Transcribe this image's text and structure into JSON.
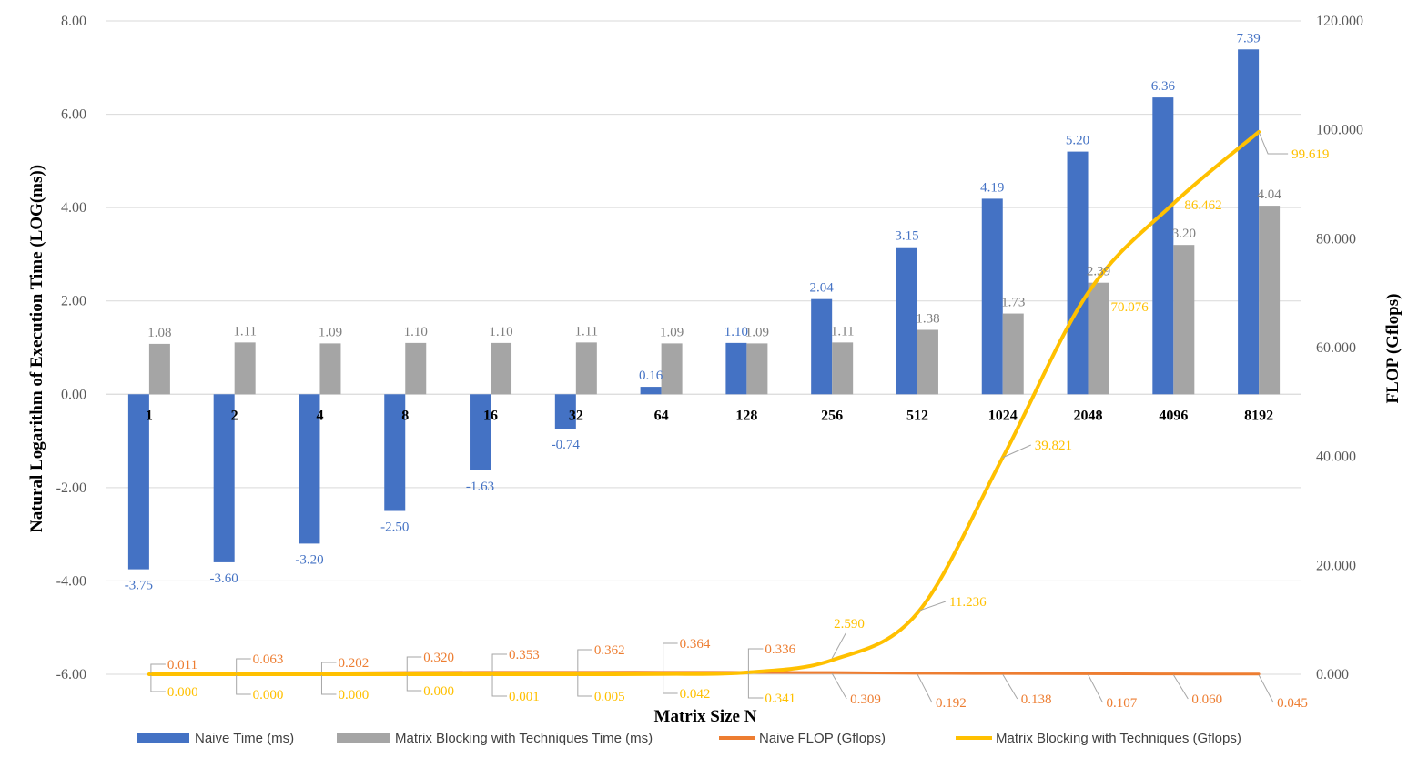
{
  "chart_data": {
    "type": "bar",
    "title": "",
    "categories": [
      "1",
      "2",
      "4",
      "8",
      "16",
      "32",
      "64",
      "128",
      "256",
      "512",
      "1024",
      "2048",
      "4096",
      "8192"
    ],
    "xlabel": "Matrix  Size N",
    "ylabel": "Natural Logarithm of Execution Time (LOG(ms))",
    "y2label": "FLOP (Gflops)",
    "ylim": [
      -6,
      8
    ],
    "y2lim": [
      0,
      120
    ],
    "y_ticks": [
      "8.00",
      "6.00",
      "4.00",
      "2.00",
      "0.00",
      "-2.00",
      "-4.00",
      "-6.00"
    ],
    "y2_ticks": [
      "120.000",
      "100.000",
      "80.000",
      "60.000",
      "40.000",
      "20.000",
      "0.000"
    ],
    "grid": true,
    "legend_position": "bottom",
    "series": [
      {
        "name": "Naive Time (ms)",
        "kind": "bar",
        "axis": "left",
        "color": "#4472C4",
        "values": [
          -3.75,
          -3.6,
          -3.2,
          -2.5,
          -1.63,
          -0.74,
          0.16,
          1.1,
          2.04,
          3.15,
          4.19,
          5.2,
          6.36,
          7.39
        ],
        "labels": [
          "-3.75",
          "-3.60",
          "-3.20",
          "-2.50",
          "-1.63",
          "-0.74",
          "0.16",
          "1.10",
          "2.04",
          "3.15",
          "4.19",
          "5.20",
          "6.36",
          "7.39"
        ]
      },
      {
        "name": "Matrix Blocking with Techniques Time (ms)",
        "kind": "bar",
        "axis": "left",
        "color": "#A5A5A5",
        "values": [
          1.08,
          1.11,
          1.09,
          1.1,
          1.1,
          1.11,
          1.09,
          1.09,
          1.11,
          1.38,
          1.73,
          2.39,
          3.2,
          4.04
        ],
        "labels": [
          "1.08",
          "1.11",
          "1.09",
          "1.10",
          "1.10",
          "1.11",
          "1.09",
          "1.09",
          "1.11",
          "1.38",
          "1.73",
          "2.39",
          "3.20",
          "4.04"
        ]
      },
      {
        "name": "Naive FLOP (Gflops)",
        "kind": "line",
        "axis": "right",
        "color": "#ED7D31",
        "values": [
          0.011,
          0.063,
          0.202,
          0.32,
          0.353,
          0.362,
          0.364,
          0.336,
          0.309,
          0.192,
          0.138,
          0.107,
          0.06,
          0.045
        ],
        "labels": [
          "0.011",
          "0.063",
          "0.202",
          "0.320",
          "0.353",
          "0.362",
          "0.364",
          "0.336",
          "0.309",
          "0.192",
          "0.138",
          "0.107",
          "0.060",
          "0.045"
        ]
      },
      {
        "name": "Matrix Blocking with Techniques  (Gflops)",
        "kind": "line",
        "axis": "right",
        "color": "#FFC000",
        "values": [
          0.0,
          0.0,
          0.0,
          0.0,
          0.001,
          0.005,
          0.042,
          0.341,
          2.59,
          11.236,
          39.821,
          70.076,
          86.462,
          99.619
        ],
        "labels": [
          "0.000",
          "0.000",
          "0.000",
          "0.000",
          "0.001",
          "0.005",
          "0.042",
          "0.341",
          "2.590",
          "11.236",
          "39.821",
          "70.076",
          "86.462",
          "99.619"
        ]
      }
    ]
  }
}
